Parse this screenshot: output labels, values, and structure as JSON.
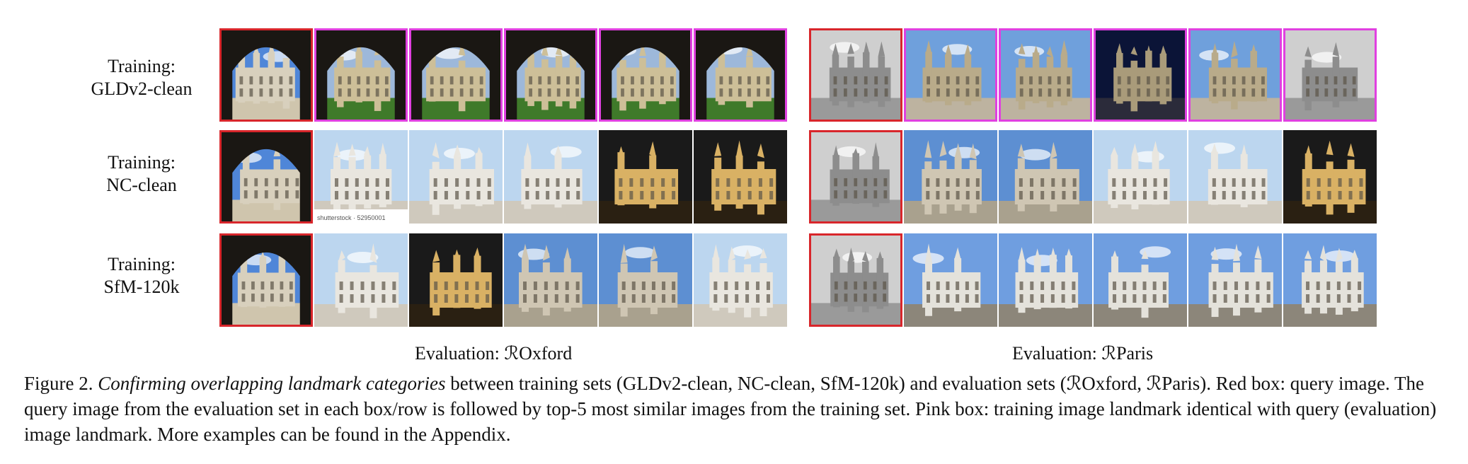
{
  "row_labels": [
    {
      "line1": "Training:",
      "line2": "GLDv2-clean"
    },
    {
      "line1": "Training:",
      "line2": "NC-clean"
    },
    {
      "line1": "Training:",
      "line2": "SfM-120k"
    }
  ],
  "eval_labels": {
    "oxford": "Evaluation: ℛOxford",
    "paris": "Evaluation: ℛParis"
  },
  "caption": {
    "fig_num": "Figure 2.",
    "fig_title": "Confirming overlapping landmark categories",
    "body": "between training sets (GLDv2-clean, NC-clean, SfM-120k) and evaluation sets (ℛOxford, ℛParis). Red box: query image. The query image from the evaluation set in each box/row is followed by top-5 most similar images from the training set. Pink box: training image landmark identical with query (evaluation) image landmark. More examples can be found in the Appendix."
  },
  "thumbnails": {
    "oxford": [
      [
        "query",
        "match",
        "match",
        "match",
        "match",
        "match"
      ],
      [
        "query",
        "plain",
        "plain",
        "plain",
        "plain",
        "plain"
      ],
      [
        "query",
        "plain",
        "plain",
        "plain",
        "plain",
        "plain"
      ]
    ],
    "paris": [
      [
        "query",
        "match",
        "match",
        "match",
        "match",
        "match"
      ],
      [
        "query",
        "plain",
        "plain",
        "plain",
        "plain",
        "plain"
      ],
      [
        "query",
        "plain",
        "plain",
        "plain",
        "plain",
        "plain"
      ]
    ]
  },
  "thumbnail_text": "shutterstock · 52950001",
  "colors": {
    "query_border": "#d8262b",
    "match_border": "#e040e0"
  }
}
